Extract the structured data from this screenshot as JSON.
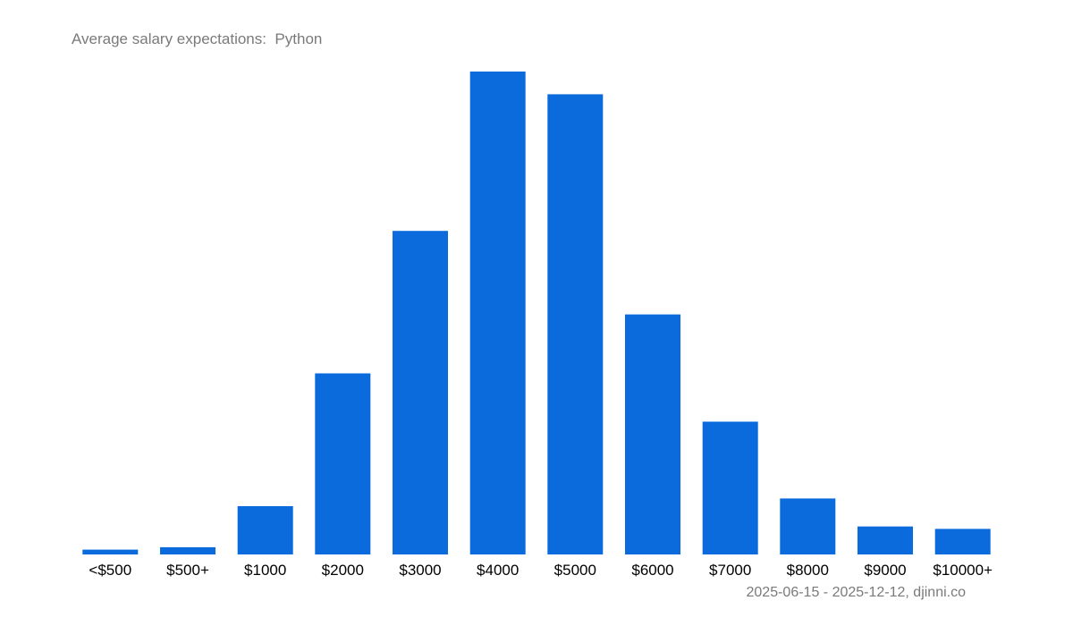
{
  "chart_data": {
    "type": "bar",
    "title": "Average salary expectations:  Python",
    "categories": [
      "<$500",
      "$500+",
      "$1000",
      "$2000",
      "$3000",
      "$4000",
      "$5000",
      "$6000",
      "$7000",
      "$8000",
      "$9000",
      "$10000+"
    ],
    "values": [
      1.0,
      1.5,
      10,
      37.5,
      67,
      100,
      95.3,
      49.7,
      27.5,
      11.6,
      5.8,
      5.3
    ],
    "xlabel": "",
    "ylabel": "",
    "ylim": [
      0,
      100
    ],
    "grid": false,
    "bar_color": "#0b6bdc",
    "footer": "2025-06-15 - 2025-12-12, djinni.co"
  }
}
